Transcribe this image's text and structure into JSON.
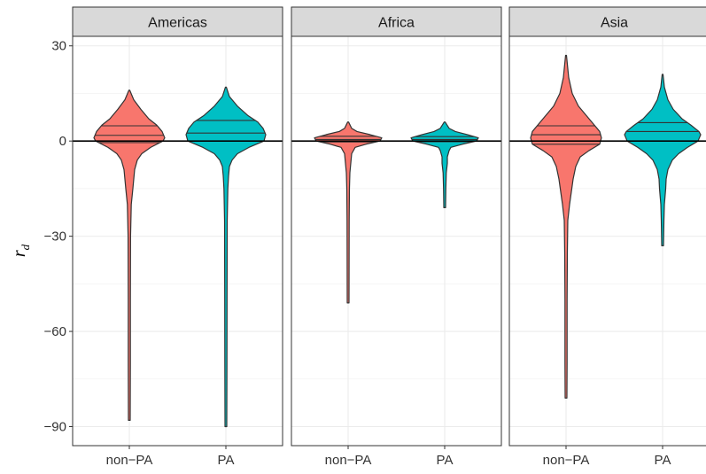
{
  "chart_data": {
    "type": "violin",
    "ylabel": "r",
    "ylabel_subscript": "d",
    "ylim": [
      -96,
      33
    ],
    "yticks": [
      30,
      0,
      -30,
      -60,
      -90
    ],
    "ytick_labels": [
      "30",
      "0",
      "−30",
      "−60",
      "−90"
    ],
    "categories": [
      "non−PA",
      "PA"
    ],
    "reference_line_y": 0,
    "colors": {
      "non-PA": "#F8766D",
      "PA": "#00BFC4",
      "strip": "#D9D9D9",
      "outline": "#333333"
    },
    "panels": [
      {
        "name": "Americas",
        "groups": [
          {
            "category": "non-PA",
            "min": -88,
            "max": 16,
            "quantiles": [
              -0.5,
              1.8,
              4.8
            ],
            "profile": [
              [
                16,
                0.5
              ],
              [
                13,
                5
              ],
              [
                10,
                13
              ],
              [
                7,
                22
              ],
              [
                5,
                31
              ],
              [
                3,
                37
              ],
              [
                1,
                40
              ],
              [
                0,
                38
              ],
              [
                -2,
                24
              ],
              [
                -4,
                14
              ],
              [
                -6,
                9
              ],
              [
                -9,
                6
              ],
              [
                -12,
                5
              ],
              [
                -15,
                4
              ],
              [
                -20,
                2.2
              ],
              [
                -30,
                1.4
              ],
              [
                -50,
                1.2
              ],
              [
                -70,
                1.2
              ],
              [
                -88,
                1
              ]
            ]
          },
          {
            "category": "PA",
            "min": -90,
            "max": 17,
            "quantiles": [
              0,
              2.5,
              6.5
            ],
            "profile": [
              [
                17,
                0.5
              ],
              [
                14,
                4
              ],
              [
                11,
                13
              ],
              [
                8,
                25
              ],
              [
                6,
                36
              ],
              [
                4,
                42
              ],
              [
                2,
                45
              ],
              [
                0,
                43
              ],
              [
                -2,
                26
              ],
              [
                -4,
                13
              ],
              [
                -6,
                7
              ],
              [
                -8,
                4
              ],
              [
                -11,
                3
              ],
              [
                -15,
                2.2
              ],
              [
                -25,
                1.5
              ],
              [
                -50,
                1.3
              ],
              [
                -70,
                1.2
              ],
              [
                -90,
                1
              ]
            ]
          }
        ]
      },
      {
        "name": "Africa",
        "groups": [
          {
            "category": "non-PA",
            "min": -51,
            "max": 6,
            "quantiles": [
              -0.3,
              0.5,
              1.5
            ],
            "profile": [
              [
                6,
                0.5
              ],
              [
                4,
                4
              ],
              [
                3,
                10
              ],
              [
                2,
                25
              ],
              [
                1,
                38
              ],
              [
                0,
                36
              ],
              [
                -1,
                20
              ],
              [
                -2,
                8
              ],
              [
                -4,
                4
              ],
              [
                -7,
                3
              ],
              [
                -10,
                2
              ],
              [
                -15,
                1.5
              ],
              [
                -25,
                1.2
              ],
              [
                -51,
                1
              ]
            ]
          },
          {
            "category": "PA",
            "min": -21,
            "max": 6,
            "quantiles": [
              -0.2,
              0.5,
              1.4
            ],
            "profile": [
              [
                6,
                0.5
              ],
              [
                4,
                5
              ],
              [
                3,
                12
              ],
              [
                2,
                26
              ],
              [
                1,
                38
              ],
              [
                0,
                36
              ],
              [
                -1,
                20
              ],
              [
                -2,
                7
              ],
              [
                -3,
                5
              ],
              [
                -5,
                3
              ],
              [
                -7,
                3
              ],
              [
                -10,
                1.8
              ],
              [
                -15,
                1.3
              ],
              [
                -21,
                1
              ]
            ]
          }
        ]
      },
      {
        "name": "Asia",
        "groups": [
          {
            "category": "non-PA",
            "min": -81,
            "max": 27,
            "quantiles": [
              -1,
              2,
              4.8
            ],
            "profile": [
              [
                27,
                0.5
              ],
              [
                20,
                3
              ],
              [
                15,
                7
              ],
              [
                11,
                14
              ],
              [
                8,
                23
              ],
              [
                5,
                32
              ],
              [
                3,
                38
              ],
              [
                1,
                40
              ],
              [
                -1,
                38
              ],
              [
                -3,
                26
              ],
              [
                -5,
                16
              ],
              [
                -8,
                11
              ],
              [
                -12,
                8
              ],
              [
                -16,
                6
              ],
              [
                -20,
                4
              ],
              [
                -25,
                2
              ],
              [
                -35,
                1.5
              ],
              [
                -50,
                1.2
              ],
              [
                -70,
                1.2
              ],
              [
                -81,
                1
              ]
            ]
          },
          {
            "category": "PA",
            "min": -33,
            "max": 21,
            "quantiles": [
              0,
              3,
              5.8
            ],
            "profile": [
              [
                21,
                0.5
              ],
              [
                17,
                2
              ],
              [
                13,
                6
              ],
              [
                10,
                12
              ],
              [
                7,
                22
              ],
              [
                5,
                32
              ],
              [
                3,
                41
              ],
              [
                2,
                43
              ],
              [
                0,
                40
              ],
              [
                -2,
                28
              ],
              [
                -4,
                18
              ],
              [
                -6,
                11
              ],
              [
                -9,
                6
              ],
              [
                -12,
                4
              ],
              [
                -15,
                3.5
              ],
              [
                -20,
                2
              ],
              [
                -25,
                1.5
              ],
              [
                -33,
                1
              ]
            ]
          }
        ]
      }
    ]
  }
}
